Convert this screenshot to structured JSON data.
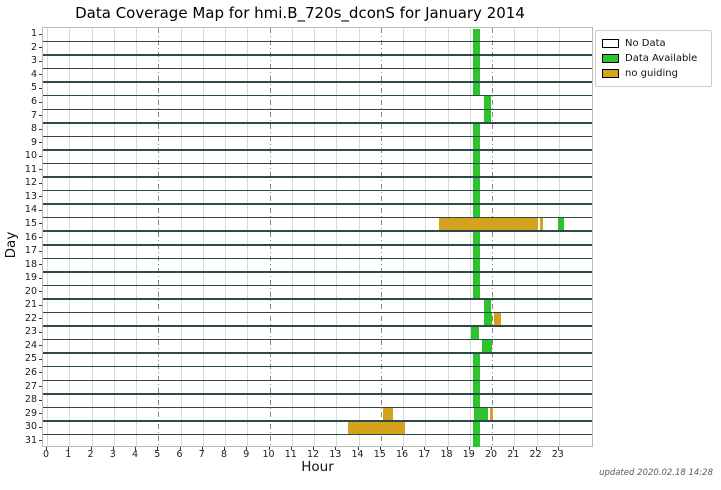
{
  "chart_data": {
    "type": "heatmap",
    "title": "Data Coverage Map for hmi.B_720s_dconS for January 2014",
    "xlabel": "Hour",
    "ylabel": "Day",
    "x_ticks": [
      0,
      1,
      2,
      3,
      4,
      5,
      6,
      7,
      8,
      9,
      10,
      11,
      12,
      13,
      14,
      15,
      16,
      17,
      18,
      19,
      20,
      21,
      22,
      23
    ],
    "y_ticks": [
      1,
      2,
      3,
      4,
      5,
      6,
      7,
      8,
      9,
      10,
      11,
      12,
      13,
      14,
      15,
      16,
      17,
      18,
      19,
      20,
      21,
      22,
      23,
      24,
      25,
      26,
      27,
      28,
      29,
      30,
      31
    ],
    "xlim": [
      0,
      24.6
    ],
    "grid": {
      "vertical_every_hour": true,
      "dashdot_hours": [
        5,
        10,
        15,
        20
      ]
    },
    "colors": {
      "data": "#2dc32d",
      "no_guiding": "#d4a21c",
      "no_data": "#ffffff",
      "row_separator": "#2d4a4a"
    },
    "legend": {
      "position": "top-right-outside",
      "items": [
        {
          "label": "No Data",
          "color": "#ffffff"
        },
        {
          "label": "Data Available",
          "color": "#2dc32d"
        },
        {
          "label": "no guiding",
          "color": "#d4a21c"
        }
      ]
    },
    "days": [
      {
        "day": 1,
        "segments": [
          {
            "start": 19.15,
            "end": 19.45,
            "status": "data"
          }
        ]
      },
      {
        "day": 2,
        "segments": [
          {
            "start": 19.15,
            "end": 19.45,
            "status": "data"
          }
        ]
      },
      {
        "day": 3,
        "segments": [
          {
            "start": 19.15,
            "end": 19.45,
            "status": "data"
          }
        ]
      },
      {
        "day": 4,
        "segments": [
          {
            "start": 19.15,
            "end": 19.45,
            "status": "data"
          }
        ]
      },
      {
        "day": 5,
        "segments": [
          {
            "start": 19.15,
            "end": 19.45,
            "status": "data"
          }
        ]
      },
      {
        "day": 6,
        "segments": [
          {
            "start": 19.65,
            "end": 19.95,
            "status": "data"
          }
        ]
      },
      {
        "day": 7,
        "segments": [
          {
            "start": 19.65,
            "end": 19.95,
            "status": "data"
          }
        ]
      },
      {
        "day": 8,
        "segments": [
          {
            "start": 19.15,
            "end": 19.45,
            "status": "data"
          }
        ]
      },
      {
        "day": 9,
        "segments": [
          {
            "start": 19.15,
            "end": 19.45,
            "status": "data"
          }
        ]
      },
      {
        "day": 10,
        "segments": [
          {
            "start": 19.15,
            "end": 19.45,
            "status": "data"
          }
        ]
      },
      {
        "day": 11,
        "segments": [
          {
            "start": 19.15,
            "end": 19.45,
            "status": "data"
          }
        ]
      },
      {
        "day": 12,
        "segments": [
          {
            "start": 19.15,
            "end": 19.45,
            "status": "data"
          }
        ]
      },
      {
        "day": 13,
        "segments": [
          {
            "start": 19.15,
            "end": 19.45,
            "status": "data"
          }
        ]
      },
      {
        "day": 14,
        "segments": [
          {
            "start": 19.15,
            "end": 19.45,
            "status": "data"
          }
        ]
      },
      {
        "day": 15,
        "segments": [
          {
            "start": 17.6,
            "end": 22.05,
            "status": "no_guiding"
          },
          {
            "start": 22.15,
            "end": 22.3,
            "status": "no_guiding"
          },
          {
            "start": 22.95,
            "end": 23.25,
            "status": "data"
          }
        ]
      },
      {
        "day": 16,
        "segments": [
          {
            "start": 19.15,
            "end": 19.45,
            "status": "data"
          }
        ]
      },
      {
        "day": 17,
        "segments": [
          {
            "start": 19.15,
            "end": 19.45,
            "status": "data"
          }
        ]
      },
      {
        "day": 18,
        "segments": [
          {
            "start": 19.15,
            "end": 19.45,
            "status": "data"
          }
        ]
      },
      {
        "day": 19,
        "segments": [
          {
            "start": 19.15,
            "end": 19.45,
            "status": "data"
          }
        ]
      },
      {
        "day": 20,
        "segments": [
          {
            "start": 19.15,
            "end": 19.45,
            "status": "data"
          }
        ]
      },
      {
        "day": 21,
        "segments": [
          {
            "start": 19.65,
            "end": 19.95,
            "status": "data"
          }
        ]
      },
      {
        "day": 22,
        "segments": [
          {
            "start": 19.65,
            "end": 20.0,
            "status": "data"
          },
          {
            "start": 20.1,
            "end": 20.4,
            "status": "no_guiding"
          }
        ]
      },
      {
        "day": 23,
        "segments": [
          {
            "start": 19.05,
            "end": 19.4,
            "status": "data"
          }
        ]
      },
      {
        "day": 24,
        "segments": [
          {
            "start": 19.55,
            "end": 20.0,
            "status": "data"
          }
        ]
      },
      {
        "day": 25,
        "segments": [
          {
            "start": 19.15,
            "end": 19.45,
            "status": "data"
          }
        ]
      },
      {
        "day": 26,
        "segments": [
          {
            "start": 19.15,
            "end": 19.45,
            "status": "data"
          }
        ]
      },
      {
        "day": 27,
        "segments": [
          {
            "start": 19.15,
            "end": 19.45,
            "status": "data"
          }
        ]
      },
      {
        "day": 28,
        "segments": [
          {
            "start": 19.15,
            "end": 19.45,
            "status": "data"
          }
        ]
      },
      {
        "day": 29,
        "segments": [
          {
            "start": 15.1,
            "end": 15.55,
            "status": "no_guiding"
          },
          {
            "start": 19.2,
            "end": 19.8,
            "status": "data"
          },
          {
            "start": 19.9,
            "end": 20.05,
            "status": "no_guiding"
          }
        ]
      },
      {
        "day": 30,
        "segments": [
          {
            "start": 13.55,
            "end": 16.1,
            "status": "no_guiding"
          },
          {
            "start": 19.15,
            "end": 19.45,
            "status": "data"
          }
        ]
      },
      {
        "day": 31,
        "segments": [
          {
            "start": 19.15,
            "end": 19.45,
            "status": "data"
          }
        ]
      }
    ],
    "updated_note": "updated 2020.02.18 14:28"
  }
}
